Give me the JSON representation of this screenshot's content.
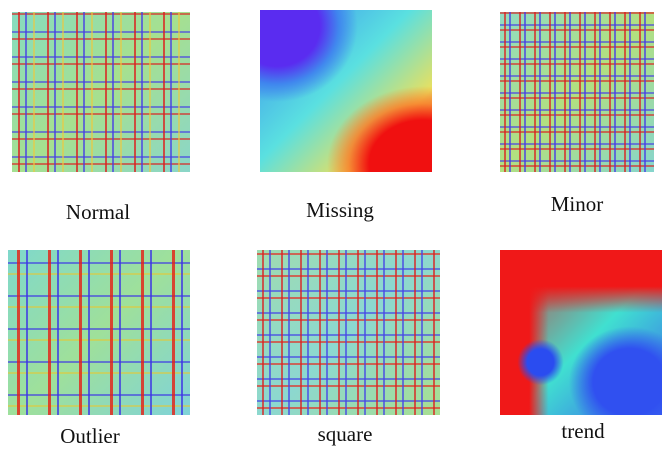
{
  "panels": [
    {
      "label": "Normal"
    },
    {
      "label": "Missing"
    },
    {
      "label": "Minor"
    },
    {
      "label": "Outlier"
    },
    {
      "label": "square"
    },
    {
      "label": "trend"
    }
  ]
}
